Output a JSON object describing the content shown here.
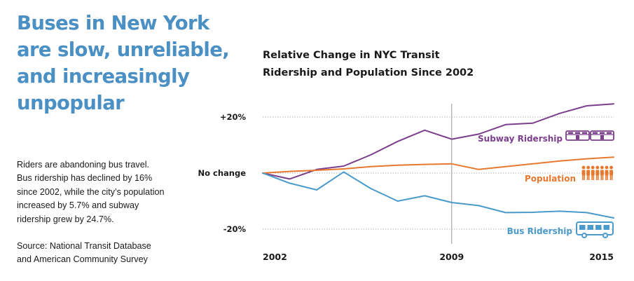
{
  "headline": [
    "Buses in New York",
    "are slow, unreliable,",
    "and increasingly",
    "unpopular"
  ],
  "description": [
    "Riders are abandoning bus travel.",
    "Bus ridership has declined by 16%",
    "since 2002, while the city’s population",
    "increased by 5.7% and subway",
    "ridership grew by 24.7%."
  ],
  "source": [
    "Source: National Transit Database",
    "and American Community Survey"
  ],
  "colors": {
    "headline": "#4a90c4",
    "subway": "#7b3f8c",
    "population": "#e8782e",
    "bus": "#4a9acb",
    "grid": "#b5b5b5",
    "marker": "#9a9a9a"
  },
  "chart_data": {
    "type": "line",
    "title_lines": [
      "Relative Change in NYC Transit",
      "Ridership and Population Since 2002"
    ],
    "x": [
      2002,
      2003,
      2004,
      2005,
      2006,
      2007,
      2008,
      2009,
      2010,
      2011,
      2012,
      2013,
      2014,
      2015
    ],
    "xlim": [
      2002,
      2015
    ],
    "ylim": [
      -20,
      20
    ],
    "yticks": [
      {
        "value": 20,
        "label": "+20%"
      },
      {
        "value": 0,
        "label": "No change"
      },
      {
        "value": -20,
        "label": "-20%"
      }
    ],
    "xticks": [
      {
        "value": 2002,
        "label": "2002"
      },
      {
        "value": 2009,
        "label": "2009"
      },
      {
        "value": 2015,
        "label": "2015"
      }
    ],
    "marker_year": 2009,
    "series": [
      {
        "name": "Subway Ridership",
        "key": "subway",
        "icon": "subway-train-icon",
        "values": [
          0.0,
          -2.1,
          1.3,
          2.5,
          6.5,
          11.3,
          15.3,
          12.1,
          13.9,
          17.3,
          17.8,
          21.3,
          24.0,
          24.7
        ]
      },
      {
        "name": "Population",
        "key": "population",
        "icon": "people-icon",
        "values": [
          0.0,
          0.6,
          1.0,
          1.5,
          2.3,
          2.8,
          3.1,
          3.3,
          1.3,
          2.3,
          3.3,
          4.3,
          5.1,
          5.7
        ]
      },
      {
        "name": "Bus Ridership",
        "key": "bus",
        "icon": "bus-icon",
        "values": [
          0.0,
          -3.6,
          -6.0,
          0.4,
          -5.5,
          -10.0,
          -8.1,
          -10.5,
          -11.6,
          -14.1,
          -14.0,
          -13.6,
          -14.1,
          -16.0
        ]
      }
    ]
  }
}
